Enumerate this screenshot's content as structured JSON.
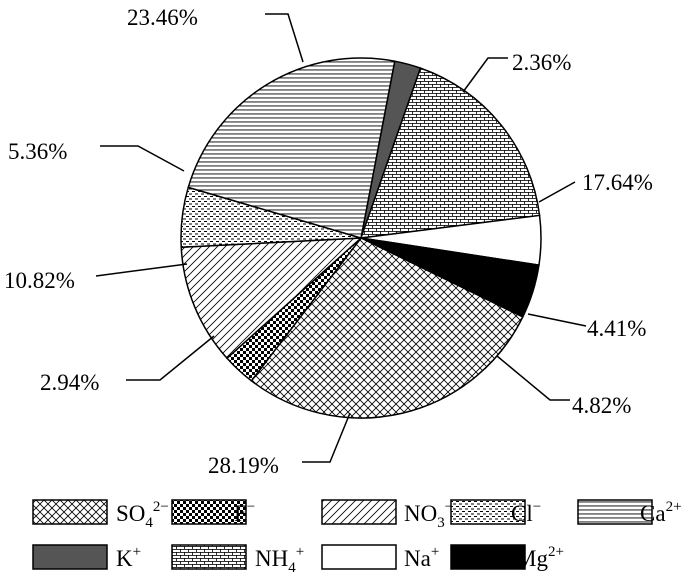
{
  "chart_data": {
    "type": "pie",
    "start_angle_deg": 79.2,
    "direction": "clockwise",
    "slices": [
      {
        "key": "K",
        "label_base": "K",
        "label_sup": "+",
        "label_sub": "",
        "value": 2.36,
        "value_label": "2.36%",
        "pattern": "solid-gray"
      },
      {
        "key": "NH4",
        "label_base": "NH",
        "label_sup": "+",
        "label_sub": "4",
        "value": 17.64,
        "value_label": "17.64%",
        "pattern": "brick"
      },
      {
        "key": "Na",
        "label_base": "Na",
        "label_sup": "+",
        "label_sub": "",
        "value": 4.41,
        "value_label": "4.41%",
        "pattern": "white"
      },
      {
        "key": "Mg",
        "label_base": "Mg",
        "label_sup": "2+",
        "label_sub": "",
        "value": 4.82,
        "value_label": "4.82%",
        "pattern": "solid-black"
      },
      {
        "key": "SO4",
        "label_base": "SO",
        "label_sup": "2−",
        "label_sub": "4",
        "value": 28.19,
        "value_label": "28.19%",
        "pattern": "crosshatch"
      },
      {
        "key": "F",
        "label_base": "F",
        "label_sup": "−",
        "label_sub": "",
        "value": 2.94,
        "value_label": "2.94%",
        "pattern": "checker"
      },
      {
        "key": "NO3",
        "label_base": "NO",
        "label_sup": "−",
        "label_sub": "3",
        "value": 10.82,
        "value_label": "10.82%",
        "pattern": "diagonal"
      },
      {
        "key": "Cl",
        "label_base": "Cl",
        "label_sup": "−",
        "label_sub": "",
        "value": 5.36,
        "value_label": "5.36%",
        "pattern": "dots"
      },
      {
        "key": "Ca",
        "label_base": "Ca",
        "label_sup": "2+",
        "label_sub": "",
        "value": 23.46,
        "value_label": "23.46%",
        "pattern": "horizontal"
      }
    ],
    "legend": {
      "placement": "bottom",
      "rows": [
        [
          "SO4",
          "F",
          "NO3",
          "Cl",
          "Ca"
        ],
        [
          "K",
          "NH4",
          "Na",
          "Mg"
        ]
      ]
    }
  }
}
